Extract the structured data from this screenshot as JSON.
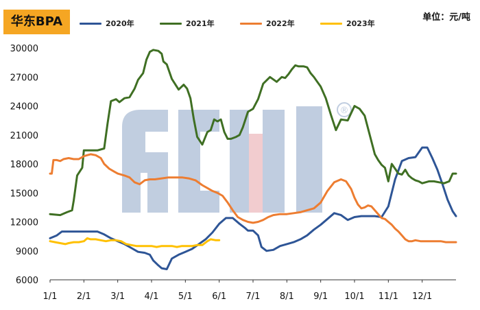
{
  "title": "华东BPA",
  "unit_label": "单位：元/吨",
  "colors": {
    "s2020": "#2e5596",
    "s2021": "#3f6f23",
    "s2022": "#ed7d31",
    "s2023": "#ffc000",
    "badge": "#f5a623"
  },
  "chart_data": {
    "type": "line",
    "title": "华东BPA",
    "unit": "单位：元/吨",
    "xlabel": "",
    "ylabel": "",
    "xlim": [
      0,
      12
    ],
    "ylim": [
      6000,
      30000
    ],
    "x_ticks": [
      "1/1",
      "2/1",
      "3/1",
      "4/1",
      "5/1",
      "6/1",
      "7/1",
      "8/1",
      "9/1",
      "10/1",
      "11/1",
      "12/1"
    ],
    "y_ticks": [
      "6000",
      "9000",
      "12000",
      "15000",
      "18000",
      "21000",
      "24000",
      "27000",
      "30000"
    ],
    "legend_position": "top",
    "grid": false,
    "series": [
      {
        "name": "2020年",
        "x": [
          0,
          0.2,
          0.35,
          0.6,
          1.0,
          1.4,
          1.6,
          1.8,
          2.0,
          2.2,
          2.4,
          2.6,
          2.8,
          2.95,
          3.05,
          3.2,
          3.3,
          3.45,
          3.6,
          3.8,
          4.0,
          4.2,
          4.4,
          4.6,
          4.8,
          5.0,
          5.2,
          5.4,
          5.6,
          5.75,
          5.85,
          6.0,
          6.15,
          6.25,
          6.4,
          6.6,
          6.8,
          7.0,
          7.2,
          7.4,
          7.6,
          7.8,
          8.0,
          8.2,
          8.4,
          8.6,
          8.8,
          9.0,
          9.2,
          9.4,
          9.6,
          9.8,
          10.0,
          10.2,
          10.4,
          10.6,
          10.8,
          11.0,
          11.15,
          11.3,
          11.45,
          11.6,
          11.75,
          11.9,
          12.0
        ],
        "y": [
          10300,
          10600,
          11000,
          11000,
          11000,
          11000,
          10700,
          10300,
          10000,
          9700,
          9300,
          8900,
          8800,
          8600,
          8000,
          7500,
          7200,
          7100,
          8200,
          8600,
          8900,
          9200,
          9700,
          10200,
          10900,
          11800,
          12400,
          12400,
          11800,
          11400,
          11100,
          11100,
          10600,
          9400,
          9000,
          9100,
          9500,
          9700,
          9900,
          10200,
          10600,
          11200,
          11700,
          12300,
          12900,
          12700,
          12200,
          12500,
          12600,
          12600,
          12600,
          12500,
          13600,
          16400,
          18300,
          18600,
          18700,
          19700,
          19700,
          18600,
          17400,
          15900,
          14300,
          13100,
          12600
        ]
      },
      {
        "name": "2021年",
        "x": [
          0,
          0.3,
          0.5,
          0.65,
          0.7,
          0.8,
          0.95,
          1.0,
          1.15,
          1.4,
          1.6,
          1.7,
          1.8,
          1.95,
          2.05,
          2.2,
          2.35,
          2.5,
          2.6,
          2.75,
          2.85,
          2.95,
          3.05,
          3.2,
          3.3,
          3.35,
          3.45,
          3.6,
          3.8,
          3.95,
          4.05,
          4.15,
          4.25,
          4.35,
          4.5,
          4.65,
          4.75,
          4.85,
          4.95,
          5.05,
          5.15,
          5.25,
          5.35,
          5.5,
          5.6,
          5.7,
          5.85,
          6.0,
          6.15,
          6.3,
          6.5,
          6.7,
          6.85,
          6.95,
          7.05,
          7.15,
          7.25,
          7.35,
          7.5,
          7.6,
          7.7,
          7.8,
          7.9,
          8.0,
          8.15,
          8.3,
          8.45,
          8.6,
          8.8,
          9.0,
          9.15,
          9.3,
          9.45,
          9.6,
          9.7,
          9.8,
          9.9,
          10.0,
          10.1,
          10.2,
          10.3,
          10.4,
          10.5,
          10.6,
          10.7,
          10.8,
          10.9,
          11.0,
          11.1,
          11.2,
          11.35,
          11.5,
          11.65,
          11.8,
          11.9,
          12.0
        ],
        "y": [
          12800,
          12700,
          13000,
          13200,
          14200,
          16800,
          17600,
          19400,
          19400,
          19400,
          19600,
          22200,
          24500,
          24700,
          24400,
          24800,
          24900,
          25800,
          26700,
          27400,
          28800,
          29600,
          29800,
          29700,
          29400,
          28600,
          28300,
          26800,
          25700,
          26200,
          25800,
          24800,
          22600,
          20800,
          20000,
          21300,
          21500,
          22600,
          22400,
          22600,
          21300,
          20600,
          20600,
          20800,
          21000,
          21800,
          23400,
          23700,
          24700,
          26300,
          27000,
          26500,
          27000,
          26900,
          27300,
          27800,
          28200,
          28100,
          28100,
          28000,
          27400,
          27000,
          26500,
          26000,
          24800,
          23100,
          21500,
          22600,
          22500,
          24000,
          23700,
          23000,
          21000,
          19000,
          18400,
          17900,
          17600,
          16200,
          18000,
          17500,
          17000,
          16900,
          17400,
          16800,
          16500,
          16300,
          16200,
          16000,
          16100,
          16200,
          16200,
          16100,
          16000,
          16200,
          17000,
          17000
        ]
      },
      {
        "name": "2022年",
        "x": [
          0,
          0.05,
          0.1,
          0.2,
          0.3,
          0.4,
          0.55,
          0.7,
          0.85,
          1.0,
          1.2,
          1.35,
          1.5,
          1.6,
          1.75,
          1.9,
          2.0,
          2.2,
          2.35,
          2.5,
          2.65,
          2.8,
          2.95,
          3.1,
          3.3,
          3.5,
          3.7,
          3.9,
          4.1,
          4.3,
          4.5,
          4.65,
          4.8,
          4.95,
          5.1,
          5.25,
          5.4,
          5.55,
          5.7,
          5.85,
          6.0,
          6.15,
          6.3,
          6.45,
          6.6,
          6.8,
          7.0,
          7.2,
          7.4,
          7.6,
          7.8,
          8.0,
          8.2,
          8.4,
          8.6,
          8.75,
          8.9,
          9.0,
          9.1,
          9.2,
          9.3,
          9.4,
          9.5,
          9.6,
          9.7,
          9.8,
          9.9,
          10.0,
          10.1,
          10.2,
          10.3,
          10.4,
          10.5,
          10.6,
          10.7,
          10.8,
          10.95,
          11.1,
          11.25,
          11.4,
          11.55,
          11.7,
          11.85,
          12.0
        ],
        "y": [
          17000,
          17000,
          18400,
          18400,
          18300,
          18500,
          18600,
          18500,
          18500,
          18800,
          19000,
          18900,
          18600,
          18000,
          17500,
          17200,
          17000,
          16800,
          16600,
          16100,
          15900,
          16300,
          16400,
          16400,
          16500,
          16600,
          16600,
          16600,
          16500,
          16300,
          15800,
          15500,
          15200,
          15000,
          14700,
          14000,
          13200,
          12500,
          12200,
          12000,
          11900,
          12000,
          12200,
          12500,
          12700,
          12800,
          12800,
          12900,
          13000,
          13200,
          13400,
          14000,
          15200,
          16100,
          16400,
          16200,
          15400,
          14500,
          13800,
          13400,
          13500,
          13700,
          13600,
          13200,
          12800,
          12400,
          12300,
          12000,
          11700,
          11300,
          11000,
          10600,
          10200,
          10000,
          10000,
          10100,
          10000,
          10000,
          10000,
          10000,
          10000,
          9900,
          9900,
          9900
        ]
      },
      {
        "name": "2023年",
        "x": [
          0,
          0.15,
          0.3,
          0.45,
          0.55,
          0.7,
          0.85,
          1.0,
          1.1,
          1.2,
          1.35,
          1.5,
          1.65,
          1.8,
          1.95,
          2.1,
          2.25,
          2.4,
          2.55,
          2.7,
          2.85,
          3.0,
          3.15,
          3.3,
          3.45,
          3.6,
          3.75,
          3.9,
          4.05,
          4.2,
          4.35,
          4.5,
          4.65,
          4.75,
          4.9,
          5.0
        ],
        "y": [
          10000,
          9900,
          9800,
          9700,
          9800,
          9900,
          9900,
          10000,
          10300,
          10200,
          10200,
          10100,
          10000,
          10100,
          10100,
          10000,
          9700,
          9600,
          9500,
          9500,
          9500,
          9500,
          9400,
          9500,
          9500,
          9500,
          9400,
          9500,
          9500,
          9500,
          9600,
          9600,
          10000,
          10200,
          10100,
          10100
        ]
      }
    ]
  },
  "watermark": {
    "text": "ACMI",
    "registered": "®"
  }
}
